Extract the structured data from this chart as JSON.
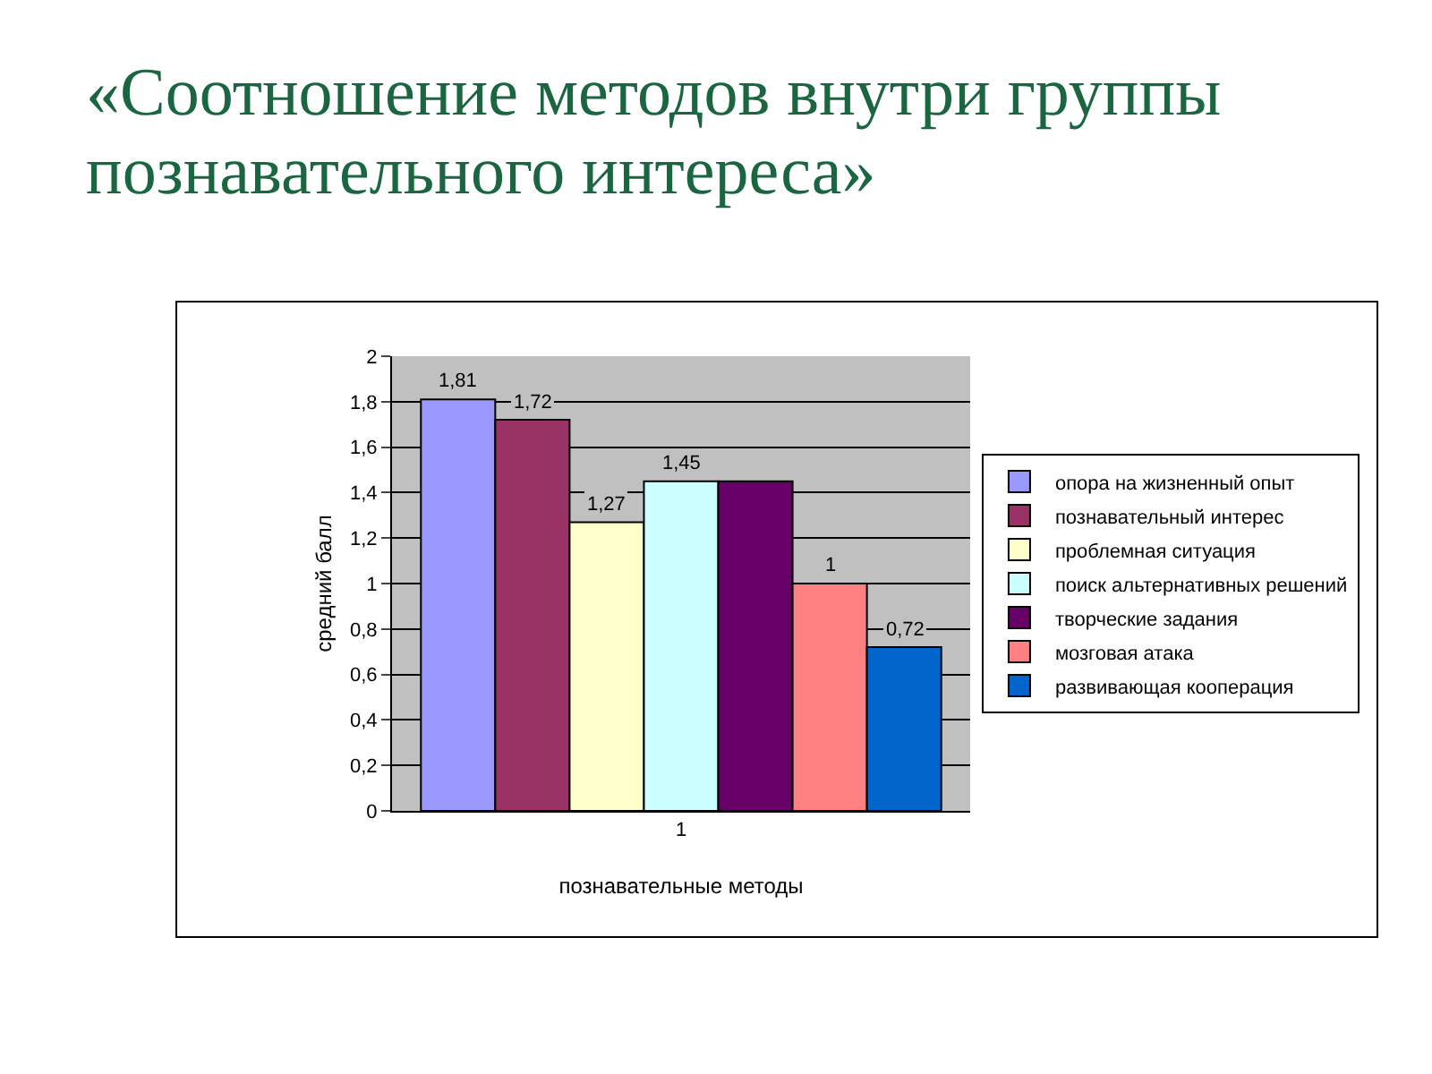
{
  "chart_data": {
    "type": "bar",
    "title": "«Соотношение методов внутри группы познавательного интереса»",
    "xlabel": "познавательные методы",
    "ylabel": "средний балл",
    "categories": [
      "1"
    ],
    "series": [
      {
        "name": "опора на жизненный опыт",
        "color": "#9999ff",
        "values": [
          1.81
        ],
        "value_labels": [
          "1,81"
        ]
      },
      {
        "name": "познавательный интерес",
        "color": "#993366",
        "values": [
          1.72
        ],
        "value_labels": [
          "1,72"
        ]
      },
      {
        "name": "проблемная ситуация",
        "color": "#ffffcc",
        "values": [
          1.27
        ],
        "value_labels": [
          "1,27"
        ]
      },
      {
        "name": "поиск альтернативных решений",
        "color": "#ccffff",
        "values": [
          1.45
        ],
        "value_labels": [
          "1,45"
        ]
      },
      {
        "name": "творческие задания",
        "color": "#660066",
        "values": [
          1.45
        ],
        "value_labels": [
          null
        ]
      },
      {
        "name": "мозговая атака",
        "color": "#ff8080",
        "values": [
          1
        ],
        "value_labels": [
          "1"
        ]
      },
      {
        "name": "развивающая кооперация",
        "color": "#0066cc",
        "values": [
          0.72
        ],
        "value_labels": [
          "0,72"
        ]
      }
    ],
    "ylim": [
      0,
      2
    ],
    "yticks": [
      0,
      {
        "value": 0.2,
        "label": "0,2"
      },
      {
        "value": 0.4,
        "label": "0,4"
      },
      {
        "value": 0.6,
        "label": "0,6"
      },
      {
        "value": 0.8,
        "label": "0,8"
      },
      1,
      {
        "value": 1.2,
        "label": "1,2"
      },
      {
        "value": 1.4,
        "label": "1,4"
      },
      {
        "value": 1.6,
        "label": "1,6"
      },
      {
        "value": 1.8,
        "label": "1,8"
      },
      2
    ],
    "grid": "y",
    "legend": "right"
  }
}
